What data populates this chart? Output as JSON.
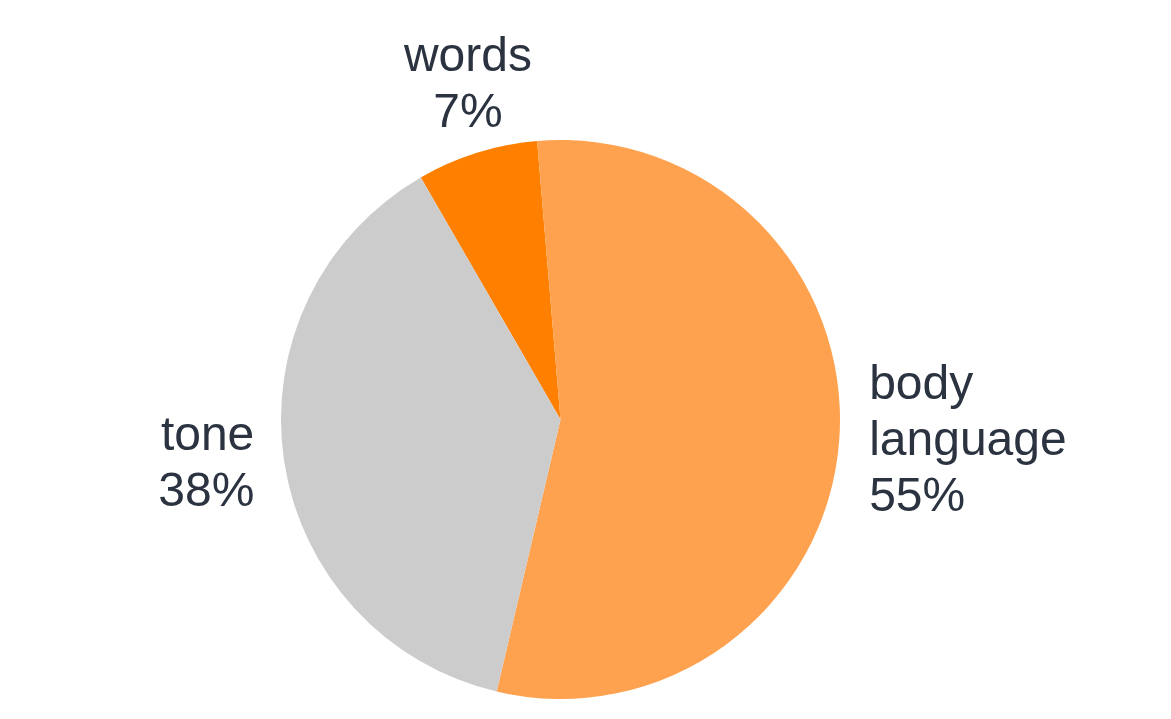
{
  "chart_data": {
    "type": "pie",
    "categories": [
      "words",
      "body language",
      "tone"
    ],
    "values": [
      7,
      55,
      38
    ],
    "value_labels": [
      "7%",
      "55%",
      "38%"
    ],
    "colors": [
      "#ff8000",
      "#ffa24f",
      "#cccccc"
    ],
    "legend": false
  }
}
